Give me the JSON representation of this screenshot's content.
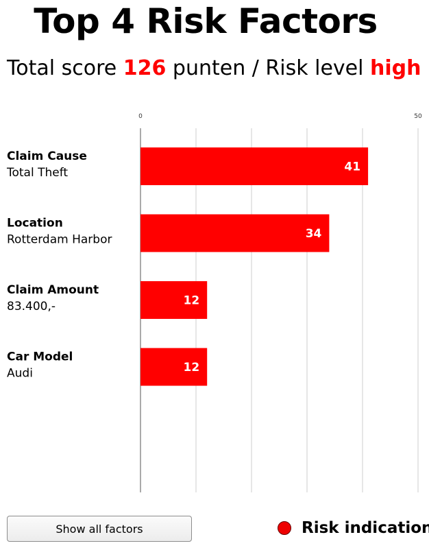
{
  "title": "Top 4 Risk Factors",
  "summary": {
    "prefix": "Total score ",
    "score": "126",
    "middle": " punten / Risk level ",
    "level": "high"
  },
  "colors": {
    "accent": "#ff0000",
    "grid": "#cccccc"
  },
  "chart_data": {
    "type": "bar",
    "orientation": "horizontal",
    "categories": [
      {
        "name": "Claim Cause",
        "detail": "Total Theft"
      },
      {
        "name": "Location",
        "detail": "Rotterdam Harbor"
      },
      {
        "name": "Claim Amount",
        "detail": "83.400,-"
      },
      {
        "name": "Car Model",
        "detail": "Audi"
      }
    ],
    "values": [
      41,
      34,
      12,
      12
    ],
    "value_labels": [
      "41",
      "34",
      "12",
      "12"
    ],
    "xlim": [
      0,
      50
    ],
    "tick_labels": [
      "0",
      "50"
    ],
    "grid": true,
    "bar_color": "#ff0000"
  },
  "footer": {
    "button_label": "Show all factors",
    "legend_label": "Risk indication",
    "legend_color": "#ee0000"
  }
}
